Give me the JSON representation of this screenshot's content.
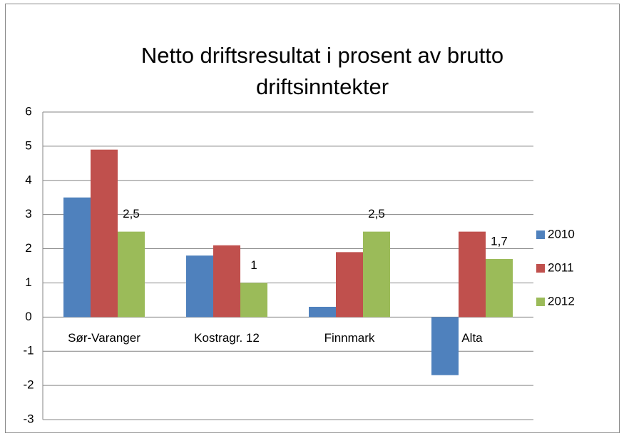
{
  "chart_data": {
    "type": "bar",
    "title": "Netto driftsresultat i prosent av brutto driftsinntekter",
    "categories": [
      "Sør-Varanger",
      "Kostragr. 12",
      "Finnmark",
      "Alta"
    ],
    "series": [
      {
        "name": "2010",
        "color": "#4f81bd",
        "values": [
          3.5,
          1.8,
          0.3,
          -1.7
        ]
      },
      {
        "name": "2011",
        "color": "#c0504d",
        "values": [
          4.9,
          2.1,
          1.9,
          2.5
        ]
      },
      {
        "name": "2012",
        "color": "#9bbb59",
        "values": [
          2.5,
          1,
          2.5,
          1.7
        ],
        "value_labels": [
          "2,5",
          "1",
          "2,5",
          "1,7"
        ]
      }
    ],
    "ylim": [
      -3,
      6
    ],
    "yticks": [
      -3,
      -2,
      -1,
      0,
      1,
      2,
      3,
      4,
      5,
      6
    ],
    "grid": true,
    "legend": "right"
  }
}
